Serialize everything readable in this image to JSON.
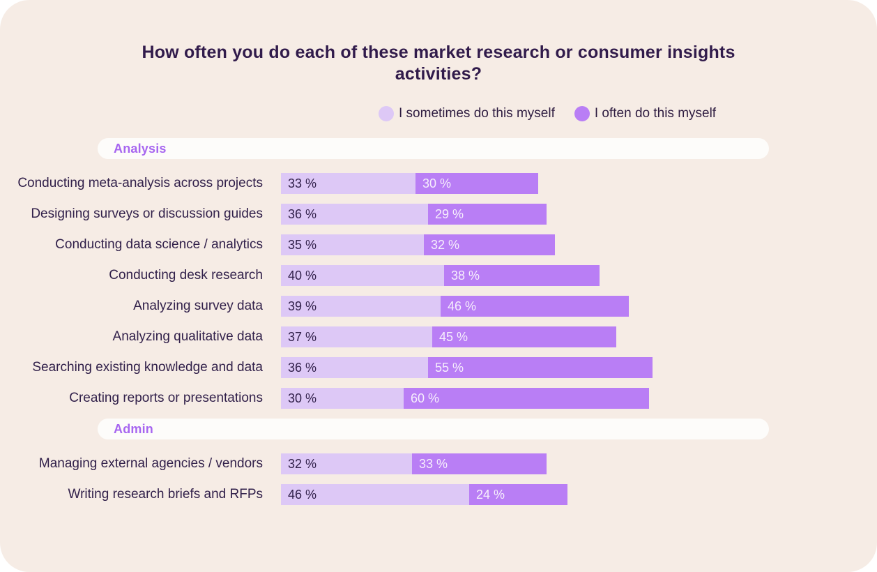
{
  "title": "How often you do each of these market research or consumer insights activities?",
  "legend": [
    {
      "label": "I sometimes do this myself",
      "color": "#ddc8f6"
    },
    {
      "label": "I often do this myself",
      "color": "#b97ef5"
    }
  ],
  "colors": {
    "background": "#f6ece5",
    "bar_sometimes": "#ddc8f6",
    "bar_often": "#b97ef5",
    "title_text": "#311b4b",
    "row_label_text": "#31204a",
    "section_label_text": "#a766f0",
    "section_pill_background": "#fdfcfa",
    "bar_often_text": "#f6eefc"
  },
  "chart_data": {
    "type": "bar",
    "orientation": "horizontal",
    "stacked": true,
    "unit": "%",
    "title": "How often you do each of these market research or consumer insights activities?",
    "legend_position": "top",
    "grid": false,
    "xlim": [
      0,
      96
    ],
    "series_names": [
      "I sometimes do this myself",
      "I often do this myself"
    ],
    "sections": [
      {
        "label": "Analysis",
        "rows": [
          {
            "label": "Conducting meta-analysis across projects",
            "values": [
              33,
              30
            ]
          },
          {
            "label": "Designing surveys or discussion guides",
            "values": [
              36,
              29
            ]
          },
          {
            "label": "Conducting data science / analytics",
            "values": [
              35,
              32
            ]
          },
          {
            "label": "Conducting desk research",
            "values": [
              40,
              38
            ]
          },
          {
            "label": "Analyzing survey data",
            "values": [
              39,
              46
            ]
          },
          {
            "label": "Analyzing qualitative data",
            "values": [
              37,
              45
            ]
          },
          {
            "label": "Searching existing knowledge and data",
            "values": [
              36,
              55
            ]
          },
          {
            "label": "Creating reports or presentations",
            "values": [
              30,
              60
            ]
          }
        ]
      },
      {
        "label": "Admin",
        "rows": [
          {
            "label": "Managing external agencies / vendors",
            "values": [
              32,
              33
            ]
          },
          {
            "label": "Writing research briefs and RFPs",
            "values": [
              46,
              24
            ]
          }
        ]
      }
    ]
  }
}
